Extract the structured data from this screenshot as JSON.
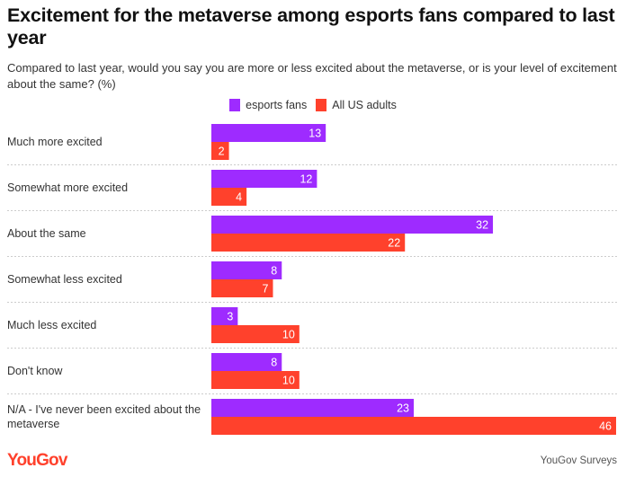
{
  "title": "Excitement for the metaverse among esports fans compared to last year",
  "subtitle": "Compared to last year, would you say you are more or less excited about the metaverse, or is your level of excitement about the same? (%)",
  "colors": {
    "esports": "#9e2bff",
    "adults": "#ff412c",
    "separator": "#cccccc"
  },
  "footer": {
    "logo": "YouGov",
    "source": "YouGov Surveys"
  },
  "chart_data": {
    "type": "bar",
    "orientation": "horizontal",
    "title": "Excitement for the metaverse among esports fans compared to last year",
    "xlabel": "",
    "ylabel": "",
    "xlim": [
      0,
      46
    ],
    "grid": false,
    "legend_position": "top-center",
    "categories": [
      "Much more excited",
      "Somewhat more excited",
      "About the same",
      "Somewhat less excited",
      "Much less excited",
      "Don't know",
      "N/A - I've never been excited about the metaverse"
    ],
    "series": [
      {
        "name": "esports fans",
        "values": [
          13,
          12,
          32,
          8,
          3,
          8,
          23
        ]
      },
      {
        "name": "All US adults",
        "values": [
          2,
          4,
          22,
          7,
          10,
          10,
          46
        ]
      }
    ]
  }
}
